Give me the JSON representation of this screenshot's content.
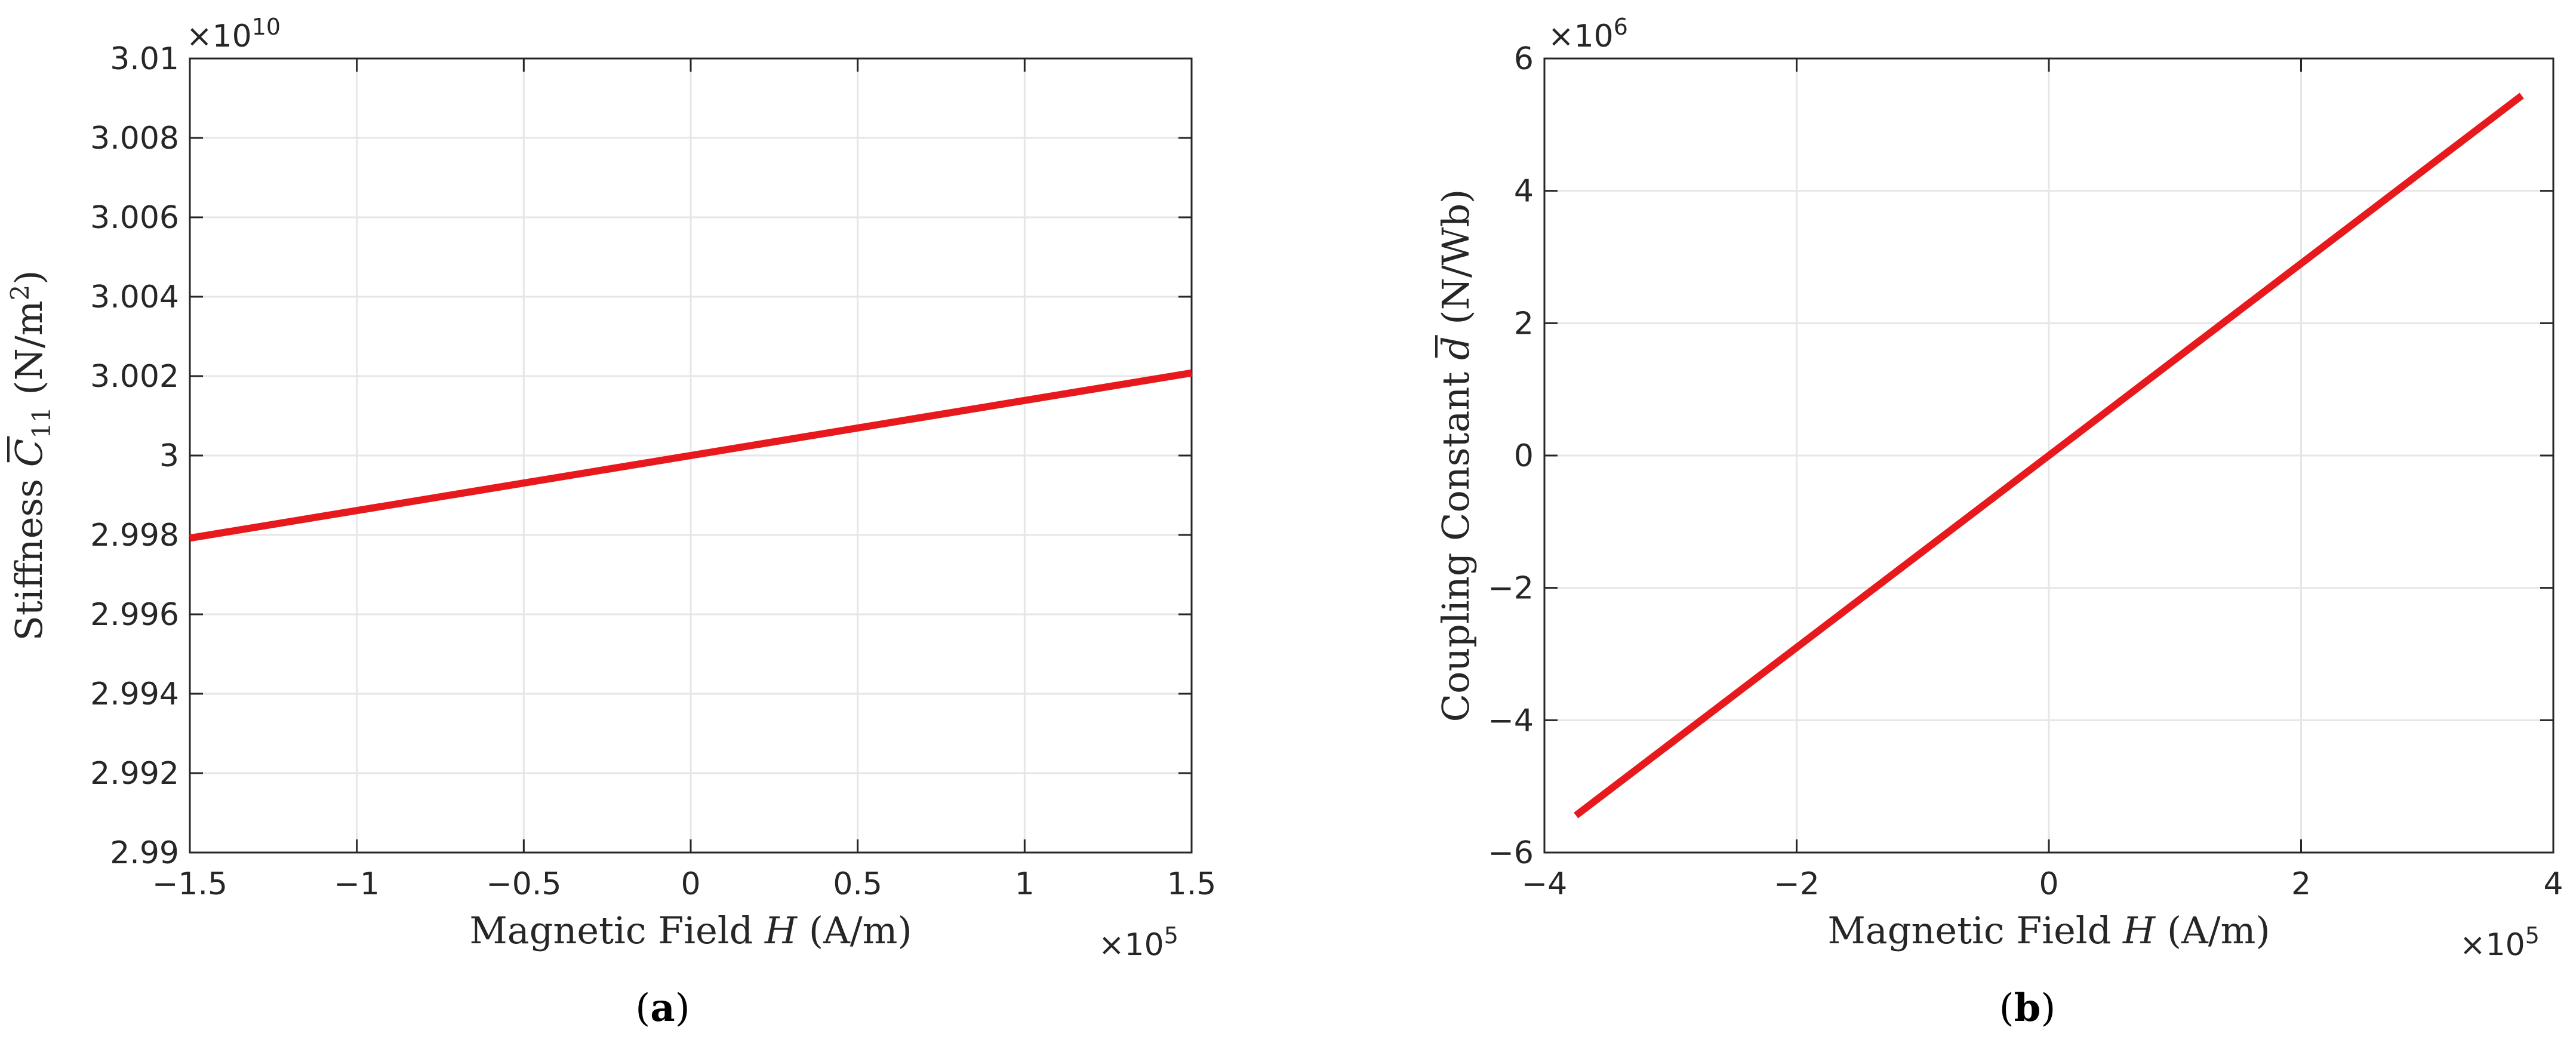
{
  "colors": {
    "line": "#e8191c",
    "grid": "#e6e6e6",
    "axis": "#262626"
  },
  "chart_data": [
    {
      "id": "a",
      "type": "line",
      "panel_label": "a",
      "xlabel": {
        "prefix": "Magnetic Field ",
        "var": "H",
        "suffix": " (A/m)"
      },
      "ylabel": {
        "prefix": "Stiffness ",
        "var": "C",
        "sub": "11",
        "suffix": " (N/m",
        "sup": "2",
        "close": ")"
      },
      "x_exponent": {
        "base": "×10",
        "exp": "5"
      },
      "y_exponent": {
        "base": "×10",
        "exp": "10"
      },
      "xlim": [
        -1.5,
        1.5
      ],
      "ylim": [
        2.99,
        3.01
      ],
      "xticks": [
        -1.5,
        -1,
        -0.5,
        0,
        0.5,
        1,
        1.5
      ],
      "xtick_labels": [
        "−1.5",
        "−1",
        "−0.5",
        "0",
        "0.5",
        "1",
        "1.5"
      ],
      "yticks": [
        2.99,
        2.992,
        2.994,
        2.996,
        2.998,
        3,
        3.002,
        3.004,
        3.006,
        3.008,
        3.01
      ],
      "ytick_labels": [
        "2.99",
        "2.992",
        "2.994",
        "2.996",
        "2.998",
        "3",
        "3.002",
        "3.004",
        "3.006",
        "3.008",
        "3.01"
      ],
      "grid": true,
      "series": [
        {
          "name": "C11",
          "x": [
            -1.5,
            1.5
          ],
          "y": [
            2.99792,
            3.00208
          ]
        }
      ]
    },
    {
      "id": "b",
      "type": "line",
      "panel_label": "b",
      "xlabel": {
        "prefix": "Magnetic Field ",
        "var": "H",
        "suffix": " (A/m)"
      },
      "ylabel": {
        "prefix": "Coupling Constant ",
        "var": "d",
        "suffix": " (N/Wb)"
      },
      "x_exponent": {
        "base": "×10",
        "exp": "5"
      },
      "y_exponent": {
        "base": "×10",
        "exp": "6"
      },
      "xlim": [
        -4,
        4
      ],
      "ylim": [
        -6,
        6
      ],
      "xticks": [
        -4,
        -2,
        0,
        2,
        4
      ],
      "xtick_labels": [
        "−4",
        "−2",
        "0",
        "2",
        "4"
      ],
      "yticks": [
        -6,
        -4,
        -2,
        0,
        2,
        4,
        6
      ],
      "ytick_labels": [
        "−6",
        "−4",
        "−2",
        "0",
        "2",
        "4",
        "6"
      ],
      "grid": true,
      "series": [
        {
          "name": "d",
          "x": [
            -3.75,
            3.75
          ],
          "y": [
            -5.44,
            5.44
          ]
        }
      ]
    }
  ]
}
